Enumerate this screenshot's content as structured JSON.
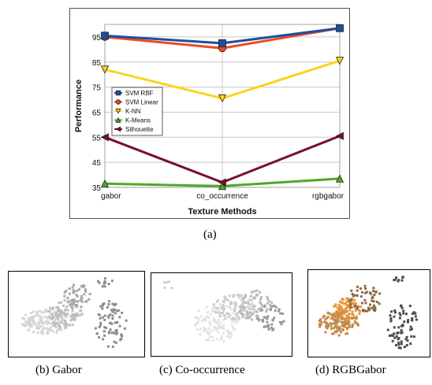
{
  "chart_data": [
    {
      "type": "line",
      "xlabel": "Texture Methods",
      "ylabel": "Performance",
      "categories": [
        "gabor",
        "co_occurrence",
        "rgbgabor"
      ],
      "yticks": [
        35,
        45,
        55,
        65,
        75,
        85,
        95
      ],
      "ylim": [
        35,
        100
      ],
      "grid": true,
      "legend": "center-left",
      "series": [
        {
          "name": "SVM RBF",
          "values": [
            95.5,
            92.5,
            98.5
          ],
          "color": "#1f4e9c",
          "fill": "#1f4e9c",
          "marker": "square"
        },
        {
          "name": "SVM Linear",
          "values": [
            95,
            90.5,
            98.5
          ],
          "color": "#ee4922",
          "fill": "#ee4922",
          "marker": "circle"
        },
        {
          "name": "K-NN",
          "values": [
            82,
            70.5,
            85.5
          ],
          "color": "#f7d61e",
          "fill": "#f7d61e",
          "marker": "triangle-down"
        },
        {
          "name": "K-Means",
          "values": [
            36.5,
            35.5,
            38.5
          ],
          "color": "#4ea72c",
          "fill": "#4ea72c",
          "marker": "triangle-up"
        },
        {
          "name": "Silhouette",
          "values": [
            55,
            37,
            55.5
          ],
          "color": "#7a0e2c",
          "fill": "#7a0e2c",
          "marker": "arrow-left"
        }
      ]
    }
  ],
  "captions": {
    "a": "(a)",
    "b": "(b)  Gabor",
    "c": "(c)  Co-occurrence",
    "d": "(d)  RGBGabor"
  },
  "thumbnail_colors": {
    "gabor": [
      "#d6d6d6",
      "#bdbdbd",
      "#a6a6a6",
      "#8c8c8c"
    ],
    "co_occurrence": [
      "#e3e3e3",
      "#cfcfcf",
      "#b8b8b8",
      "#999999"
    ],
    "rgbgabor": [
      "#e8973a",
      "#c48a4a",
      "#8c6a45",
      "#4d4d4d"
    ]
  }
}
